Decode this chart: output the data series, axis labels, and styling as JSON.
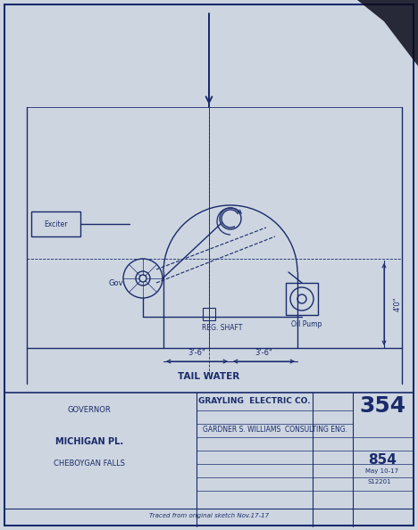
{
  "bg_color": "#cdd6e0",
  "line_color": "#1a2a6c",
  "title_block": {
    "project": "GRAYLING  ELECTRIC CO.",
    "engineer": "GARDNER S. WILLIAMS  CONSULTING ENG.",
    "sheet_num": "354",
    "date": "May 10-17",
    "drawing_num": "S12201",
    "traced": "Traced from original sketch Nov.17-17",
    "left1": "GOVERNOR",
    "left2": "MICHIGAN PL.",
    "left3": "CHEBOYGAN FALLS"
  },
  "labels": {
    "exciter": "Exciter",
    "gov": "Gov",
    "reg_shaft": "REG. SHAFT",
    "oil_pump": "Oil Pump",
    "tail_water": "TAIL WATER",
    "dim1": "3'-6\"",
    "dim2": "3'-6\"",
    "dim3": "4'0\""
  }
}
